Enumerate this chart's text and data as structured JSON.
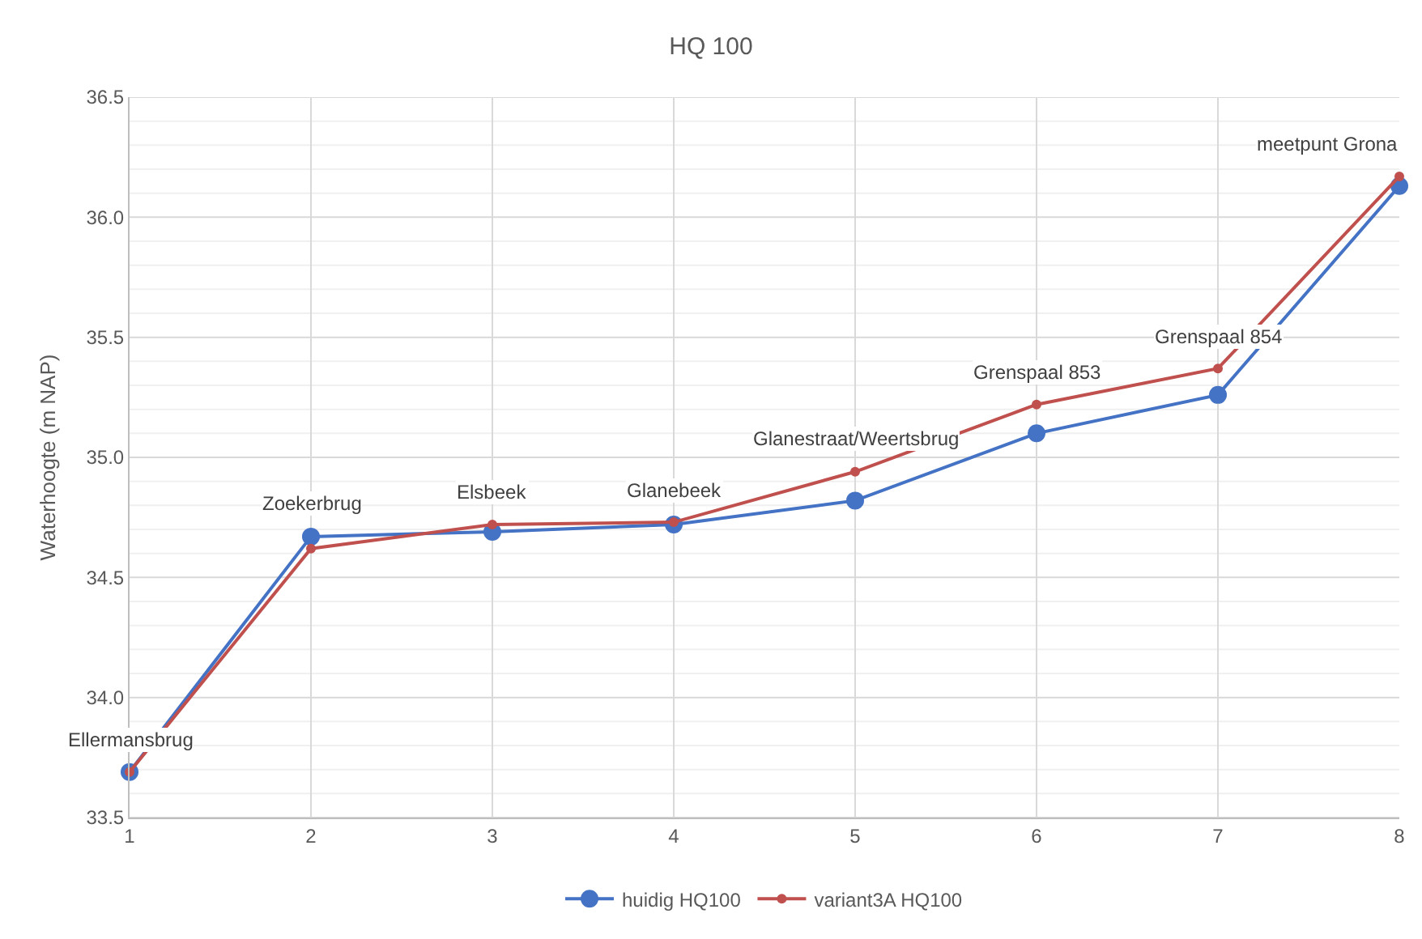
{
  "chart_data": {
    "type": "line",
    "title": "HQ 100",
    "ylabel": "Waterhoogte (m NAP)",
    "x": [
      1,
      2,
      3,
      4,
      5,
      6,
      7,
      8
    ],
    "series": [
      {
        "name": "huidig HQ100",
        "color": "#4472c4",
        "values": [
          33.69,
          34.67,
          34.69,
          34.72,
          34.82,
          35.1,
          35.26,
          36.13
        ]
      },
      {
        "name": "variant3A HQ100",
        "color": "#c0504d",
        "values": [
          33.69,
          34.62,
          34.72,
          34.73,
          34.94,
          35.22,
          35.37,
          36.17
        ]
      }
    ],
    "annotations": [
      {
        "text": "Ellermansbrug",
        "x": 1,
        "y": 33.69
      },
      {
        "text": "Zoekerbrug",
        "x": 2,
        "y": 34.67
      },
      {
        "text": "Elsbeek",
        "x": 3,
        "y": 34.72
      },
      {
        "text": "Glanebeek",
        "x": 4,
        "y": 34.73
      },
      {
        "text": "Glanestraat/Weertsbrug",
        "x": 5,
        "y": 34.94
      },
      {
        "text": "Grenspaal 853",
        "x": 6,
        "y": 35.22
      },
      {
        "text": "Grenspaal 854",
        "x": 7,
        "y": 35.37
      },
      {
        "text": "meetpunt Grona",
        "x": 8,
        "y": 36.17
      }
    ],
    "xlim": [
      1,
      8
    ],
    "xticks": [
      1,
      2,
      3,
      4,
      5,
      6,
      7,
      8
    ],
    "ylim": [
      33.5,
      36.5
    ],
    "yticks": [
      {
        "value": 33.5,
        "label": "33.5"
      },
      {
        "value": 33.6,
        "label": null
      },
      {
        "value": 33.7,
        "label": null
      },
      {
        "value": 33.8,
        "label": null
      },
      {
        "value": 33.9,
        "label": null
      },
      {
        "value": 34.0,
        "label": "34.0"
      },
      {
        "value": 34.1,
        "label": null
      },
      {
        "value": 34.2,
        "label": null
      },
      {
        "value": 34.3,
        "label": null
      },
      {
        "value": 34.4,
        "label": null
      },
      {
        "value": 34.5,
        "label": "34.5"
      },
      {
        "value": 34.6,
        "label": null
      },
      {
        "value": 34.7,
        "label": null
      },
      {
        "value": 34.8,
        "label": null
      },
      {
        "value": 34.9,
        "label": null
      },
      {
        "value": 35.0,
        "label": "35.0"
      },
      {
        "value": 35.1,
        "label": null
      },
      {
        "value": 35.2,
        "label": null
      },
      {
        "value": 35.3,
        "label": null
      },
      {
        "value": 35.4,
        "label": null
      },
      {
        "value": 35.5,
        "label": "35.5"
      },
      {
        "value": 35.6,
        "label": null
      },
      {
        "value": 35.7,
        "label": null
      },
      {
        "value": 35.8,
        "label": null
      },
      {
        "value": 35.9,
        "label": null
      },
      {
        "value": 36.0,
        "label": "36.0"
      },
      {
        "value": 36.1,
        "label": null
      },
      {
        "value": 36.2,
        "label": null
      },
      {
        "value": 36.3,
        "label": null
      },
      {
        "value": 36.4,
        "label": null
      },
      {
        "value": 36.5,
        "label": "36.5"
      }
    ],
    "grid": true,
    "legend": "bottom",
    "marker": "circle",
    "line_style": "solid"
  }
}
